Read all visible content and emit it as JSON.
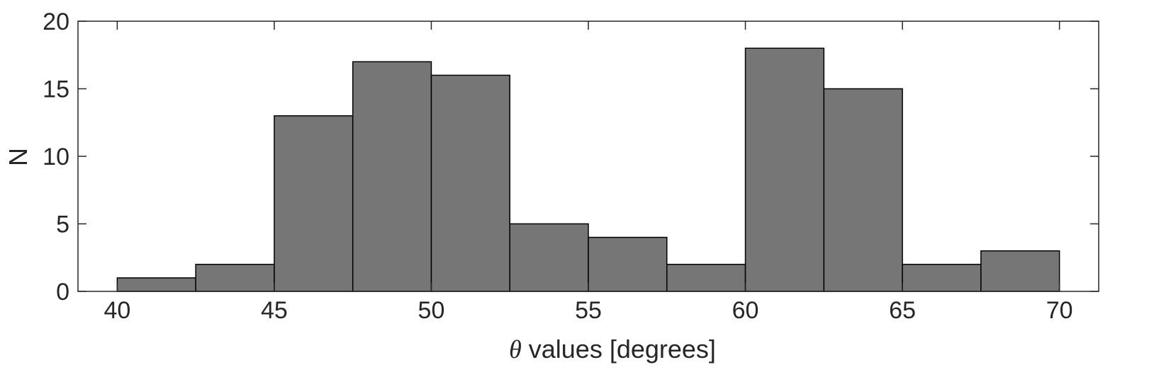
{
  "chart_data": {
    "type": "bar",
    "subtype": "histogram",
    "bin_edges": [
      40,
      42.5,
      45,
      47.5,
      50,
      52.5,
      55,
      57.5,
      60,
      62.5,
      65,
      67.5,
      70
    ],
    "values": [
      1,
      2,
      13,
      17,
      16,
      5,
      4,
      2,
      18,
      15,
      2,
      3
    ],
    "xlim": [
      38.75,
      71.25
    ],
    "ylim": [
      0,
      20
    ],
    "xticks": [
      40,
      45,
      50,
      55,
      60,
      65,
      70
    ],
    "yticks": [
      0,
      5,
      10,
      15,
      20
    ],
    "xlabel_symbol": "θ",
    "xlabel": " values [degrees]",
    "ylabel": "N",
    "grid": false,
    "colors": {
      "bar_fill": "#767676",
      "bar_edge": "#000000",
      "axes": "#262626"
    }
  }
}
